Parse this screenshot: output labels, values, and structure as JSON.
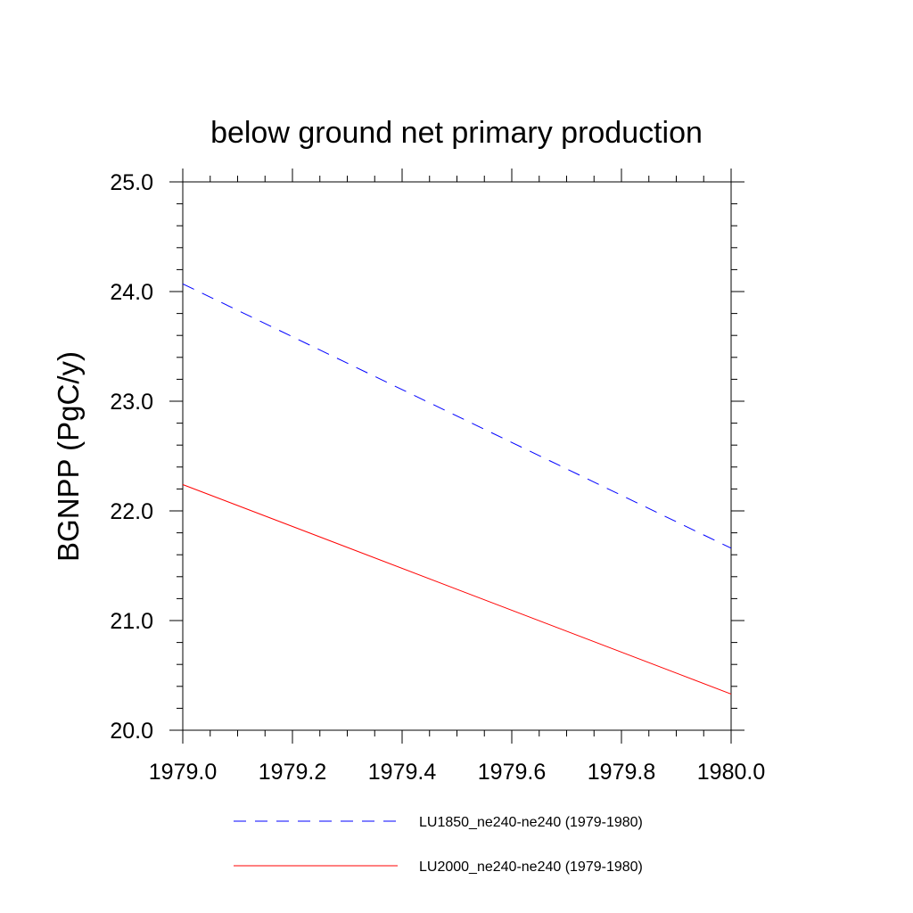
{
  "chart_data": {
    "type": "line",
    "title": "below ground net primary production",
    "xlabel": "",
    "ylabel": "BGNPP  (PgC/y)",
    "xlim": [
      1979.0,
      1980.0
    ],
    "ylim": [
      20.0,
      25.0
    ],
    "x_ticks": [
      "1979.0",
      "1979.2",
      "1979.4",
      "1979.6",
      "1979.8",
      "1980.0"
    ],
    "y_ticks": [
      "20.0",
      "21.0",
      "22.0",
      "23.0",
      "24.0",
      "25.0"
    ],
    "grid": false,
    "legend_position": "bottom",
    "series": [
      {
        "name": "LU1850_ne240-ne240 (1979-1980)",
        "color": "#0000ff",
        "style": "dashed",
        "x": [
          1979.0,
          1980.0
        ],
        "y": [
          24.07,
          21.66
        ]
      },
      {
        "name": "LU2000_ne240-ne240 (1979-1980)",
        "color": "#ff0000",
        "style": "solid",
        "x": [
          1979.0,
          1980.0
        ],
        "y": [
          22.24,
          20.33
        ]
      }
    ]
  }
}
